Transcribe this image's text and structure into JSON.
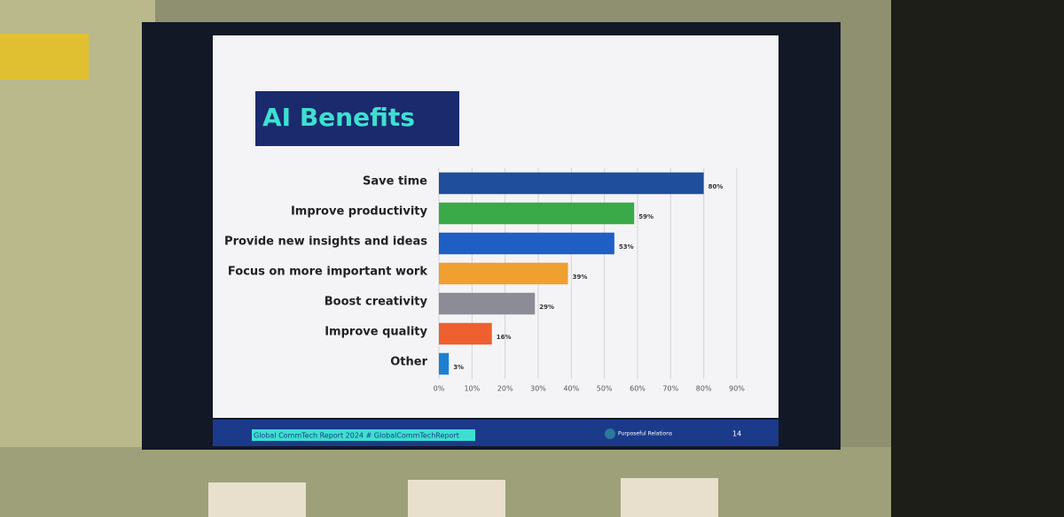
{
  "chart_data": {
    "type": "bar",
    "orientation": "horizontal",
    "title": "AI Benefits",
    "categories": [
      "Save time",
      "Improve productivity",
      "Provide new insights and ideas",
      "Focus on more important work",
      "Boost creativity",
      "Improve quality",
      "Other"
    ],
    "values": [
      80,
      59,
      53,
      39,
      29,
      16,
      3
    ],
    "value_labels": [
      "80%",
      "59%",
      "53%",
      "39%",
      "29%",
      "16%",
      "3%"
    ],
    "colors": [
      "#1f4e9c",
      "#3aaa48",
      "#1f5fc4",
      "#f0a030",
      "#8c8c96",
      "#ee6030",
      "#1e7fd0"
    ],
    "xlim": [
      0,
      90
    ],
    "xticks": [
      {
        "value": 0,
        "label": "0%"
      },
      {
        "value": 10,
        "label": "10%"
      },
      {
        "value": 20,
        "label": "20%"
      },
      {
        "value": 30,
        "label": "30%"
      },
      {
        "value": 40,
        "label": "40%"
      },
      {
        "value": 50,
        "label": "50%"
      },
      {
        "value": 60,
        "label": "60%"
      },
      {
        "value": 70,
        "label": "70%"
      },
      {
        "value": 80,
        "label": "80%"
      },
      {
        "value": 90,
        "label": "90%"
      }
    ],
    "grid": true
  },
  "footer": {
    "report": "Global CommTech Report 2024  # GlobalCommTechReport",
    "logo": "Purposeful Relations",
    "page": "14"
  }
}
